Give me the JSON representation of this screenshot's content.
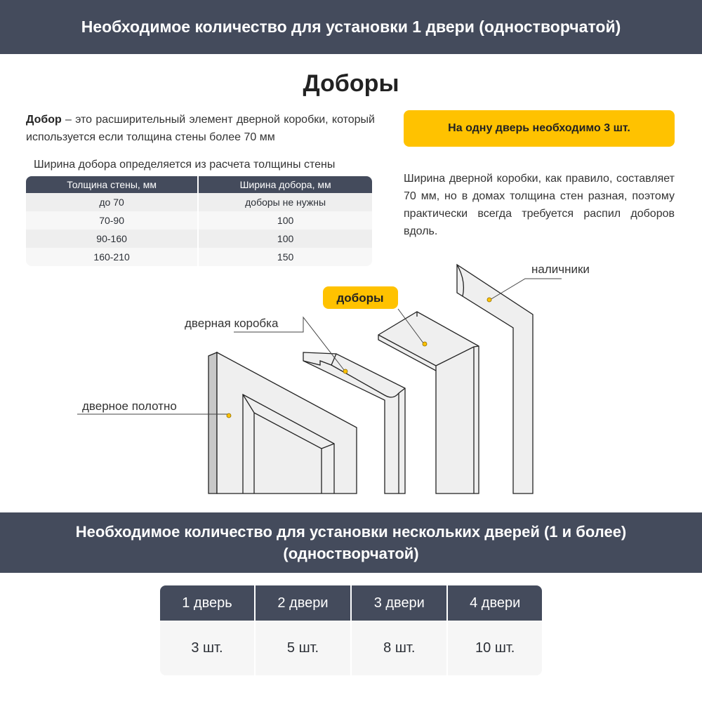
{
  "header": {
    "title": "Необходимое количество для установки 1 двери (одностворчатой)"
  },
  "section_title": "Доборы",
  "intro": {
    "term": "Добор",
    "text": " – это расширительный элемент дверной коробки, который используется если толщина стены более 70 мм"
  },
  "table_caption": "Ширина добора определяется из расчета толщины стены",
  "width_table": {
    "headers": [
      "Толщина стены, мм",
      "Ширина добора, мм"
    ],
    "rows": [
      [
        "до 70",
        "доборы не нужны"
      ],
      [
        "70-90",
        "100"
      ],
      [
        "90-160",
        "100"
      ],
      [
        "160-210",
        "150"
      ]
    ]
  },
  "callout": "На одну дверь необходимо 3 шт.",
  "note": "Ширина дверной коробки, как правило, составляет 70 мм, но в домах толщина стен разная, поэтому практически всегда требуется распил доборов вдоль.",
  "diagram": {
    "labels": {
      "door": "дверное полотно",
      "frame": "дверная коробка",
      "extension": "доборы",
      "trim": "наличники"
    }
  },
  "accent_color": "#ffc200",
  "header_color": "#444b5c",
  "multi": {
    "title": "Необходимое количество для установки нескольких дверей (1 и более) (одностворчатой)",
    "headers": [
      "1 дверь",
      "2 двери",
      "3 двери",
      "4 двери"
    ],
    "values": [
      "3 шт.",
      "5 шт.",
      "8 шт.",
      "10 шт."
    ]
  }
}
